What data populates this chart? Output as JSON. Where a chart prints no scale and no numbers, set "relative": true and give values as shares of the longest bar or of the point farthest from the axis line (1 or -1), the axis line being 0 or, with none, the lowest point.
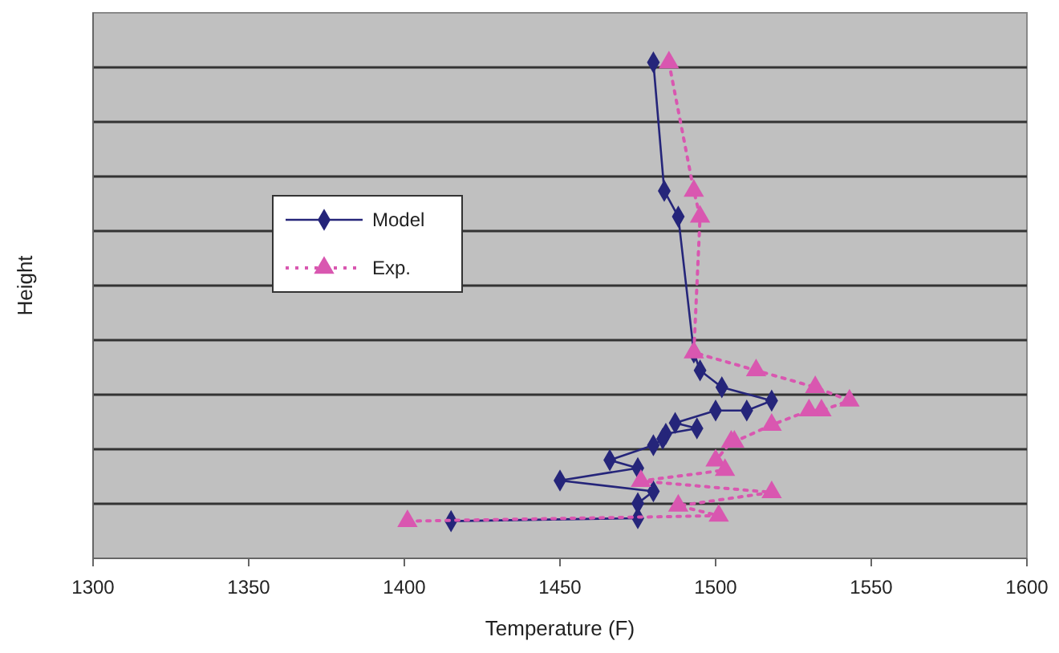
{
  "chart_data": {
    "type": "line",
    "xlabel": "Temperature (F)",
    "ylabel": "Height",
    "relative": true,
    "xlim": [
      1300,
      1600
    ],
    "xticks": [
      1300,
      1350,
      1400,
      1450,
      1500,
      1550,
      1600
    ],
    "grid": "y",
    "legend": "left",
    "series": [
      {
        "name": "Model",
        "color": "#25257a",
        "marker": "diamond",
        "line_style": "solid",
        "x": [
          1480,
          1483.5,
          1488,
          1493,
          1495,
          1502,
          1518,
          1510,
          1500,
          1487,
          1494,
          1484,
          1483,
          1480,
          1466,
          1475,
          1450,
          1480,
          1475,
          1475,
          1415
        ],
        "values": [
          1,
          0.741,
          0.689,
          0.415,
          0.379,
          0.345,
          0.318,
          0.298,
          0.298,
          0.273,
          0.262,
          0.251,
          0.241,
          0.228,
          0.198,
          0.182,
          0.157,
          0.135,
          0.111,
          0.081,
          0.075
        ]
      },
      {
        "name": "Exp.",
        "color": "#d957b0",
        "marker": "triangle",
        "line_style": "dotted",
        "x": [
          1485,
          1493,
          1495,
          1493,
          1513,
          1532,
          1543,
          1534,
          1530,
          1518,
          1506,
          1505,
          1500,
          1503,
          1476,
          1518,
          1488,
          1501,
          1401
        ],
        "values": [
          1,
          0.741,
          0.689,
          0.415,
          0.379,
          0.345,
          0.318,
          0.298,
          0.298,
          0.269,
          0.235,
          0.235,
          0.197,
          0.178,
          0.156,
          0.133,
          0.106,
          0.086,
          0.075
        ]
      }
    ]
  }
}
